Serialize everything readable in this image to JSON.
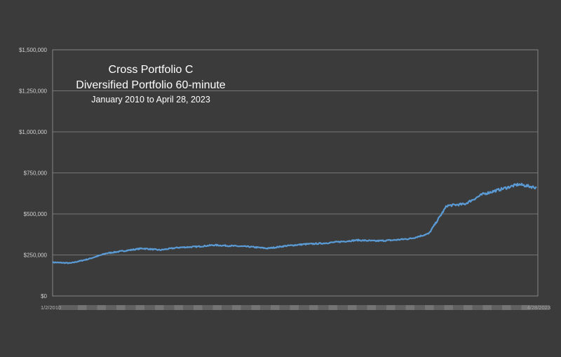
{
  "chart_data": {
    "type": "line",
    "title_lines": [
      "Cross Portfolio C",
      "Diversified Portfolio 60-minute"
    ],
    "subtitle": "January 2010 to April 28, 2023",
    "xlabel": "",
    "ylabel": "",
    "ylim": [
      0,
      1500000
    ],
    "y_ticks": [
      "$0",
      "$250,000",
      "$500,000",
      "$750,000",
      "$1,000,000",
      "$1,250,000",
      "$1,500,000"
    ],
    "x_tick_labels_note": "x tick labels are overlapping and unreadable except endpoints",
    "x_tick_first": "1/2/2010",
    "x_tick_last": "4/28/2023",
    "grid": true,
    "line_color": "#5b9bd5",
    "x": [
      "2010-01",
      "2010-07",
      "2011-01",
      "2011-07",
      "2012-01",
      "2012-07",
      "2013-01",
      "2013-07",
      "2014-01",
      "2014-07",
      "2015-01",
      "2015-07",
      "2016-01",
      "2016-07",
      "2017-01",
      "2017-07",
      "2018-01",
      "2018-07",
      "2019-01",
      "2019-07",
      "2020-01",
      "2020-07",
      "2021-01",
      "2021-07",
      "2022-01",
      "2022-07",
      "2023-01",
      "2023-04"
    ],
    "series": [
      {
        "values": [
          205000,
          200000,
          225000,
          260000,
          275000,
          290000,
          280000,
          295000,
          300000,
          310000,
          305000,
          300000,
          290000,
          305000,
          315000,
          320000,
          330000,
          340000,
          335000,
          340000,
          350000,
          380000,
          550000,
          560000,
          620000,
          650000,
          680000,
          660000
        ]
      }
    ]
  }
}
